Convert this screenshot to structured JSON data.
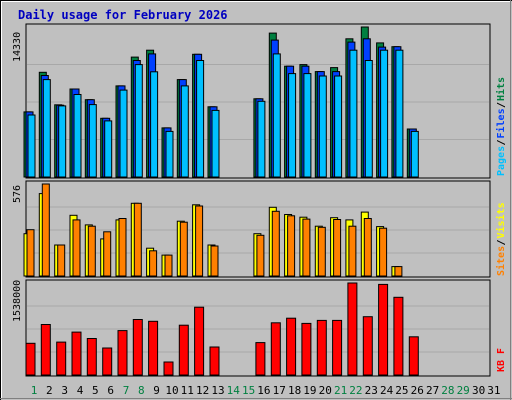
{
  "chart_data": {
    "type": "bar",
    "title": "Daily usage for February 2026",
    "categories": [
      "1",
      "2",
      "3",
      "4",
      "5",
      "6",
      "7",
      "8",
      "9",
      "10",
      "11",
      "12",
      "13",
      "14",
      "15",
      "16",
      "17",
      "18",
      "19",
      "20",
      "21",
      "22",
      "23",
      "24",
      "25",
      "26",
      "27",
      "28",
      "29",
      "30",
      "31"
    ],
    "weekend_days": [
      "1",
      "7",
      "8",
      "14",
      "15",
      "21",
      "22",
      "28",
      "29"
    ],
    "panels": [
      {
        "id": "hits",
        "y_label_max": "14330",
        "ymax": 14330,
        "legend": [
          {
            "label": "Pages",
            "color": "#00c0ff"
          },
          {
            "label": "Files",
            "color": "#0040ff"
          },
          {
            "label": "Hits",
            "color": "#008040"
          }
        ],
        "series": [
          {
            "name": "Hits",
            "color": "#008040",
            "values": [
              6220,
              10005,
              6896,
              8404,
              7381,
              5604,
              8706,
              11458,
              12115,
              4689,
              9303,
              11725,
              6711,
              null,
              null,
              7469,
              13752,
              10584,
              10741,
              10066,
              10451,
              13200,
              14330,
              12814,
              12452,
              4589,
              null,
              null,
              null,
              null,
              null
            ]
          },
          {
            "name": "Files",
            "color": "#0040ff",
            "values": [
              6220,
              9692,
              6860,
              8404,
              7381,
              5604,
              8706,
              11131,
              11761,
              4689,
              9303,
              11725,
              6711,
              null,
              null,
              7469,
              13082,
              10584,
              10584,
              10066,
              10066,
              12891,
              13200,
              12414,
              12452,
              4589,
              null,
              null,
              null,
              null,
              null
            ]
          },
          {
            "name": "Pages",
            "color": "#00c0ff",
            "values": [
              5925,
              9303,
              6795,
              7881,
              6918,
              5360,
              8305,
              10741,
              10052,
              4355,
              8706,
              11131,
              6367,
              null,
              null,
              7229,
              11761,
              9881,
              9881,
              9651,
              9651,
              12115,
              11125,
              12115,
              12113,
              4355,
              null,
              null,
              null,
              null,
              null
            ]
          }
        ]
      },
      {
        "id": "visits",
        "y_label_max": "576",
        "ymax": 576,
        "legend": [
          {
            "label": "Sites",
            "color": "#ff8000"
          },
          {
            "label": "Visits",
            "color": "#ffff00"
          }
        ],
        "series": [
          {
            "name": "Visits",
            "color": "#ffff00",
            "values": [
              265,
              516,
              194,
              380,
              320,
              232,
              351,
              455,
              174,
              131,
              343,
              446,
              194,
              null,
              null,
              265,
              430,
              385,
              368,
              312,
              365,
              351,
              400,
              309,
              59,
              null,
              null,
              null,
              null,
              null,
              null
            ]
          },
          {
            "name": "Sites",
            "color": "#ff8000",
            "values": [
              290,
              576,
              194,
              351,
              312,
              277,
              360,
              455,
              158,
              131,
              337,
              438,
              188,
              null,
              null,
              255,
              405,
              377,
              356,
              305,
              354,
              312,
              360,
              299,
              59,
              null,
              null,
              null,
              null,
              null,
              null
            ]
          }
        ]
      },
      {
        "id": "kbytes",
        "y_label_max": "1538000",
        "ymax": 1538000,
        "legend": [
          {
            "label": "KB F",
            "color": "#ff0000"
          }
        ],
        "series": [
          {
            "name": "KB F",
            "color": "#ff0000",
            "values": [
              530000,
              845000,
              550000,
              718000,
              610000,
              452000,
              743000,
              928000,
              897000,
              218000,
              832000,
              1134000,
              468000,
              null,
              null,
              541000,
              872000,
              949000,
              862000,
              912000,
              912000,
              1538000,
              974000,
              1514000,
              1299000,
              639000,
              null,
              null,
              null,
              null,
              null
            ]
          }
        ]
      }
    ]
  }
}
